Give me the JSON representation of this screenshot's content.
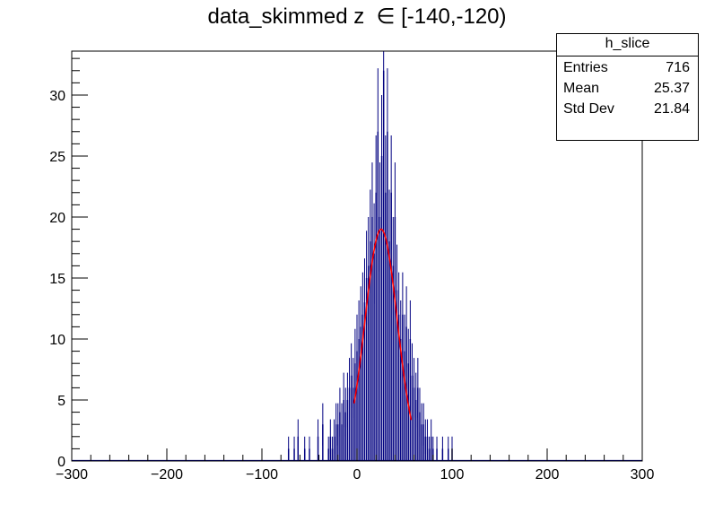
{
  "chart_data": {
    "type": "bar",
    "title": "data_skimmed z  ∈ [-140,-120)",
    "xlabel": "",
    "ylabel": "",
    "xlim": [
      -300,
      300
    ],
    "ylim": [
      0,
      33.6
    ],
    "x_ticks": [
      -300,
      -200,
      -100,
      0,
      100,
      200,
      300
    ],
    "x_tick_labels": [
      "−300",
      "−200",
      "−100",
      "0",
      "100",
      "200",
      "300"
    ],
    "y_ticks": [
      0,
      5,
      10,
      15,
      20,
      25,
      30
    ],
    "y_tick_labels": [
      "0",
      "5",
      "10",
      "15",
      "20",
      "25",
      "30"
    ],
    "grid": false,
    "legend": "none",
    "bin_width": 1,
    "histogram_color": "#000080",
    "fit_color": "#ff0000",
    "series": [
      {
        "x": [
          -72,
          -66,
          -62,
          -55,
          -50,
          -41,
          -36,
          -30,
          -28,
          -26,
          -24,
          -22,
          -20,
          -18,
          -16,
          -14,
          -12,
          -10,
          -8,
          -6,
          -4,
          -2,
          0,
          2,
          4,
          6,
          8,
          10,
          12,
          14,
          16,
          18,
          20,
          22,
          24,
          26,
          28,
          30,
          32,
          34,
          36,
          38,
          40,
          42,
          44,
          46,
          48,
          50,
          52,
          54,
          56,
          58,
          60,
          62,
          64,
          66,
          68,
          70,
          72,
          74,
          76,
          78,
          80,
          84,
          90,
          96,
          100
        ],
        "values": [
          1,
          1,
          2,
          1,
          1,
          2,
          3,
          1,
          2,
          1,
          2,
          3,
          3,
          4,
          3,
          5,
          4,
          5,
          6,
          7,
          6,
          8,
          9,
          10,
          11,
          12,
          13,
          15,
          16,
          18,
          20,
          17,
          22,
          27,
          20,
          25,
          32,
          22,
          27,
          18,
          22,
          16,
          20,
          14,
          12,
          10,
          12,
          9,
          11,
          8,
          10,
          7,
          6,
          5,
          6,
          4,
          3,
          3,
          2,
          2,
          1,
          2,
          1,
          1,
          1,
          1,
          1
        ]
      }
    ],
    "fit": {
      "type": "gaussian",
      "constant": 19,
      "mean": 25.37,
      "sigma": 17,
      "range": [
        -3,
        57
      ]
    }
  },
  "stats_box": {
    "title": "h_slice",
    "rows": [
      {
        "label": "Entries",
        "value": "716"
      },
      {
        "label": "Mean",
        "value": "25.37"
      },
      {
        "label": "Std Dev",
        "value": "21.84"
      }
    ]
  }
}
